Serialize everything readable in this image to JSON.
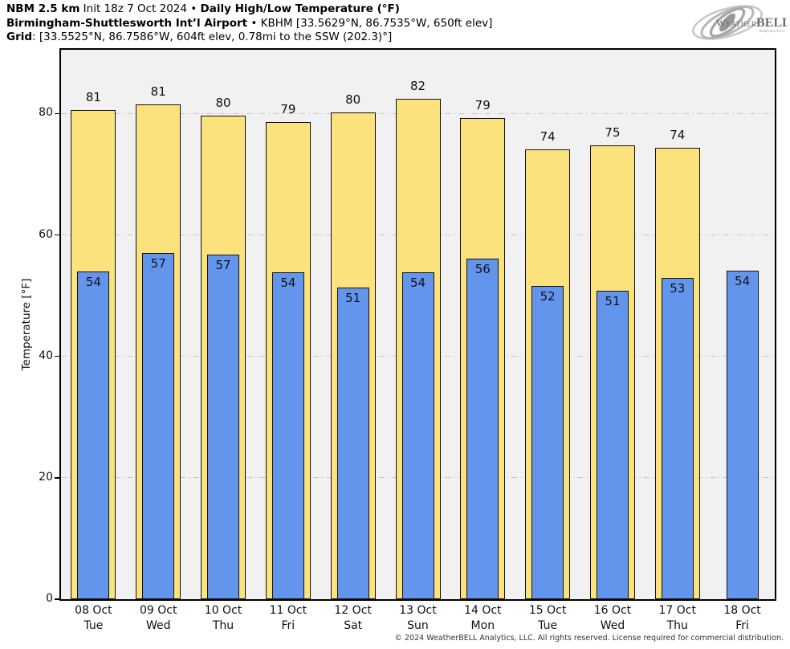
{
  "header": {
    "model": "NBM 2.5 km",
    "init": " Init 18z 7 Oct 2024 • ",
    "product": "Daily High/Low Temperature (°F)",
    "station": "Birmingham-Shuttlesworth Int’l Airport",
    "station_details": " • KBHM [33.5629°N, 86.7535°W, 650ft elev]",
    "grid_label": "Grid",
    "grid_details": ": [33.5525°N, 86.7586°W, 604ft elev, 0.78mi to the SSW (202.3)°]"
  },
  "logo": {
    "weather": "Weather",
    "bell": "BELL",
    "sub": "Analytics LLC"
  },
  "footer": {
    "copyright": "© 2024 WeatherBELL Analytics, LLC. All rights reserved. License required for commercial distribution."
  },
  "chart_data": {
    "type": "bar",
    "title": "Daily High/Low Temperature (°F)",
    "xlabel": "",
    "ylabel": "Temperature [°F]",
    "ylim": [
      0,
      90.5
    ],
    "yticks": [
      0,
      20,
      40,
      60,
      80
    ],
    "grid": "horizontal dash-dot at 20/40/60/80",
    "legend_position": "none",
    "categories": [
      "08 Oct",
      "09 Oct",
      "10 Oct",
      "11 Oct",
      "12 Oct",
      "13 Oct",
      "14 Oct",
      "15 Oct",
      "16 Oct",
      "17 Oct",
      "18 Oct"
    ],
    "day_labels": [
      "Tue",
      "Wed",
      "Thu",
      "Fri",
      "Sat",
      "Sun",
      "Mon",
      "Tue",
      "Wed",
      "Thu",
      "Fri"
    ],
    "series": [
      {
        "name": "Daily High",
        "color": "#FCE27D",
        "value_labels": [
          81,
          81,
          80,
          79,
          80,
          82,
          79,
          74,
          75,
          74,
          null
        ],
        "values": [
          80.6,
          81.5,
          79.6,
          78.6,
          80.2,
          82.4,
          79.2,
          74.1,
          74.8,
          74.3,
          null
        ]
      },
      {
        "name": "Daily Low",
        "color": "#6495ED",
        "value_labels": [
          54,
          57,
          57,
          54,
          51,
          54,
          56,
          52,
          51,
          53,
          54
        ],
        "values": [
          54.0,
          57.0,
          56.8,
          53.8,
          51.4,
          53.8,
          56.1,
          51.6,
          50.8,
          52.9,
          54.1
        ]
      }
    ],
    "colors": {
      "page_background": "#ffffff",
      "plot_background": "#f1f1f1",
      "gridline": "#c6c6c6",
      "bar_border": "#111111",
      "high_bar": "#FCE27D",
      "low_bar": "#6495ED"
    }
  }
}
